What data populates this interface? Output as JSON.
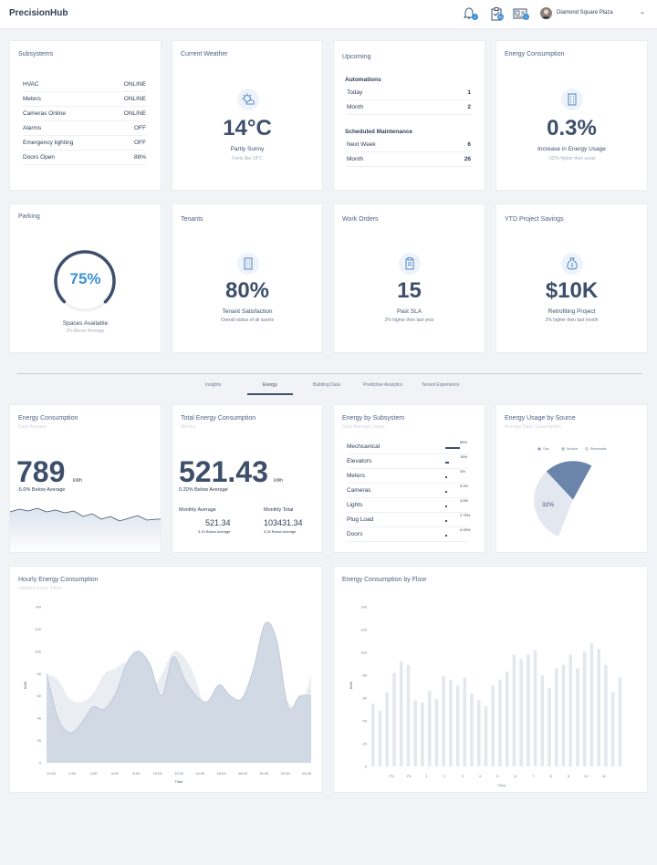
{
  "header": {
    "brand": "PrecisionHub",
    "site": "Diamond Square Plaza",
    "badges": [
      "2",
      "10",
      "2"
    ]
  },
  "subsystems": {
    "title": "Subsystems",
    "items": [
      {
        "k": "HVAC",
        "v": "ONLINE"
      },
      {
        "k": "Meters",
        "v": "ONLINE"
      },
      {
        "k": "Cameras Online",
        "v": "ONLINE"
      },
      {
        "k": "Alarms",
        "v": "OFF"
      },
      {
        "k": "Emergency lighting",
        "v": "OFF"
      },
      {
        "k": "Doors Open",
        "v": "88%"
      }
    ]
  },
  "weather": {
    "title": "Current Weather",
    "temp": "14°C",
    "desc": "Partly Sunny",
    "feels": "Feels like 18°C"
  },
  "upcoming": {
    "title": "Upcoming",
    "auto_title": "Automations",
    "auto": [
      {
        "k": "Today",
        "v": "1"
      },
      {
        "k": "Month",
        "v": "2"
      }
    ],
    "maint_title": "Scheduled Maintenance",
    "maint": [
      {
        "k": "Next Week",
        "v": "6"
      },
      {
        "k": "Month",
        "v": "26"
      }
    ]
  },
  "energy_card": {
    "title": "Energy Consumption",
    "value": "0.3%",
    "desc": "Increase in Energy Usage",
    "sub": ".02% Higher then usual"
  },
  "parking": {
    "title": "Parking",
    "value": "75%",
    "desc": "Spaces Available",
    "sub": "2% Above Average",
    "fraction": 0.75
  },
  "tenants": {
    "title": "Tenants",
    "value": "80%",
    "desc": "Tenant Satisfaction",
    "sub": "Overall status of all assets"
  },
  "workorders": {
    "title": "Work Orders",
    "value": "15",
    "desc": "Past SLA",
    "sub": "2% higher then last year"
  },
  "savings": {
    "title": "YTD Project Savings",
    "value": "$10K",
    "desc": "Retrofiting Project",
    "sub": "2% higher then last month"
  },
  "tabs": [
    "Insights",
    "Energy",
    "Building Data",
    "Predictive Analytics",
    "Tenant Experience"
  ],
  "ec_daily": {
    "title": "Energy Consumption",
    "subtitle": "Daily Average",
    "value": "789",
    "unit": "kWh",
    "below": "-5.0% Below Average"
  },
  "total_ec": {
    "title": "Total Energy Consumption",
    "subtitle": "Monthy",
    "value": "521.43",
    "unit": "kWh",
    "below": "0.20% Below Average",
    "ma_label": "Monthly Average",
    "ma_value": "521.34",
    "ma_sub": "3.10 Below Average",
    "mt_label": "Monthly Total",
    "mt_value": "103431.34",
    "mt_sub": "3.34 Below Average"
  },
  "subsystem": {
    "title": "Energy by Subsystem",
    "subtitle": "Daily Average Usage",
    "items": [
      {
        "name": "Mechcanical",
        "pct": "65%",
        "v": 65
      },
      {
        "name": "Elevators",
        "pct": "15%",
        "v": 15
      },
      {
        "name": "Meters",
        "pct": "3%",
        "v": 3
      },
      {
        "name": "Cameras",
        "pct": "5.4%",
        "v": 5.4
      },
      {
        "name": "Lights",
        "pct": "3.5%",
        "v": 3.5
      },
      {
        "name": "Plug Load",
        "pct": "2.75%",
        "v": 2.75
      },
      {
        "name": "Doors",
        "pct": "0.05%",
        "v": 0.05
      }
    ]
  },
  "source": {
    "title": "Energy Usage by Source",
    "subtitle": "Average Daily Consumption",
    "legend": [
      "Gas",
      "Nuclear",
      "Renewable"
    ],
    "slices": [
      {
        "label": "52%",
        "v": 52,
        "color": "#6b85aa"
      },
      {
        "label": "16%",
        "v": 16,
        "color": "#a4b3c8"
      },
      {
        "label": "32%",
        "v": 32,
        "color": "#e3e7ef"
      }
    ]
  },
  "chart_data": [
    {
      "type": "area",
      "title": "Hourly Energy Consumption",
      "subtitle": "Updated Every 24hrs",
      "xlabel": "Time",
      "ylabel": "kWh",
      "ylim": [
        0,
        140
      ],
      "yticks": [
        "0",
        "20",
        "40",
        "60",
        "80",
        "100",
        "120",
        "140"
      ],
      "xticks": [
        "12:00",
        "2:00",
        "4:00",
        "6:00",
        "8:00",
        "10:00",
        "12:00",
        "14:00",
        "16:00",
        "18:00",
        "20:00",
        "22:00",
        "24:00"
      ],
      "series": [
        {
          "values": [
            80,
            40,
            27,
            35,
            50,
            48,
            62,
            90,
            100,
            88,
            60,
            95,
            75,
            60,
            55,
            70,
            60,
            58,
            85,
            125,
            110,
            50,
            60,
            60
          ]
        },
        {
          "values": [
            80,
            75,
            58,
            55,
            62,
            80,
            85,
            90,
            75,
            65,
            80,
            100,
            95,
            75,
            40,
            30,
            40,
            55,
            75,
            90,
            80,
            55,
            50,
            80
          ]
        }
      ]
    },
    {
      "type": "bar",
      "title": "Energy Consumption by Floor",
      "xlabel": "Floor",
      "ylabel": "kWh",
      "ylim": [
        0,
        140
      ],
      "yticks": [
        "0",
        "20",
        "40",
        "60",
        "80",
        "100",
        "120",
        "140"
      ],
      "xticks": [
        "P3",
        "P1",
        "1",
        "2",
        "3",
        "4",
        "5",
        "6",
        "7",
        "8",
        "9",
        "10",
        "11"
      ],
      "values": [
        55,
        49,
        65,
        82,
        92,
        89,
        58,
        56,
        66,
        59,
        79,
        76,
        71,
        78,
        64,
        58,
        53,
        71,
        76,
        83,
        98,
        94,
        98,
        102,
        80,
        69,
        86,
        89,
        98,
        86,
        101,
        108,
        103,
        89,
        65,
        78
      ]
    }
  ]
}
